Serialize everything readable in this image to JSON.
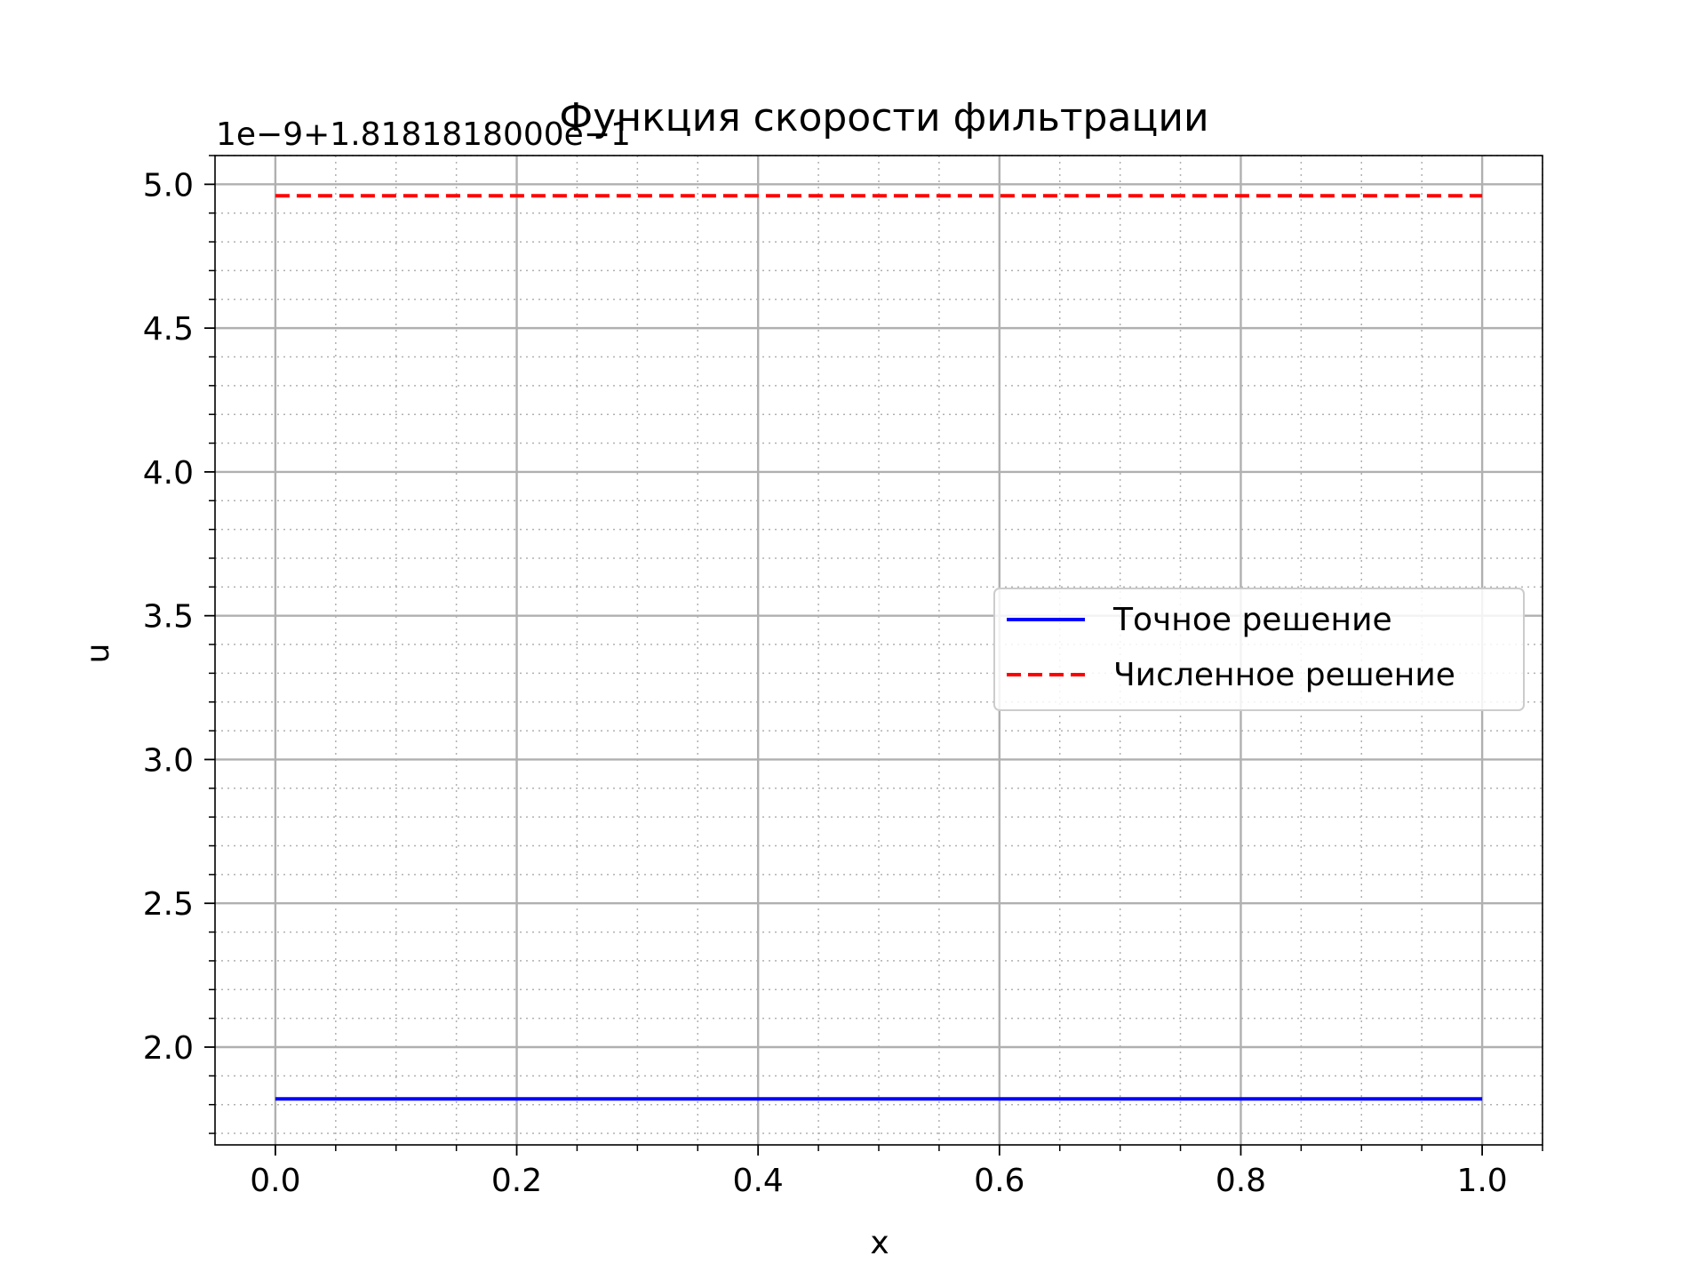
{
  "chart_data": {
    "type": "line",
    "title": "Функция скорости фильтрации",
    "offset_label": "1e−9+1.81818180​00e−1",
    "xlabel": "x",
    "ylabel": "u",
    "xlim": [
      -0.05,
      1.05
    ],
    "ylim": [
      1.66,
      5.1
    ],
    "xticks": [
      0.0,
      0.2,
      0.4,
      0.6,
      0.8,
      1.0
    ],
    "xtick_labels": [
      "0.0",
      "0.2",
      "0.4",
      "0.6",
      "0.8",
      "1.0"
    ],
    "yticks": [
      2.0,
      2.5,
      3.0,
      3.5,
      4.0,
      4.5,
      5.0
    ],
    "ytick_labels": [
      "2.0",
      "2.5",
      "3.0",
      "3.5",
      "4.0",
      "4.5",
      "5.0"
    ],
    "grid": true,
    "minor_grid": true,
    "legend_position": "center-right",
    "series": [
      {
        "name": "Точное решение",
        "x": [
          0.0,
          1.0
        ],
        "y": [
          1.82,
          1.82
        ],
        "color": "#0000ff",
        "style": "solid"
      },
      {
        "name": "Численное решение",
        "x": [
          0.0,
          1.0
        ],
        "y": [
          4.96,
          4.96
        ],
        "color": "#ff0000",
        "style": "dashed"
      }
    ]
  }
}
